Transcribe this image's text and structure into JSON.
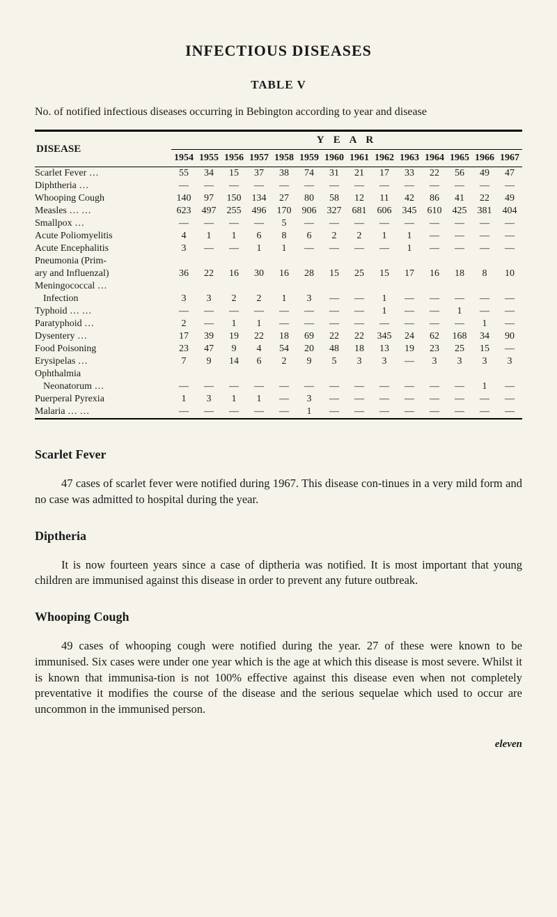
{
  "title": "INFECTIOUS DISEASES",
  "tableLabel": "TABLE V",
  "caption": "No. of notified infectious diseases occurring in Bebington according to year and disease",
  "yearBanner": "Y E A R",
  "diseaseHeaderLabel": "DISEASE",
  "years": [
    "1954",
    "1955",
    "1956",
    "1957",
    "1958",
    "1959",
    "1960",
    "1961",
    "1962",
    "1963",
    "1964",
    "1965",
    "1966",
    "1967"
  ],
  "rows": [
    {
      "label": "Scarlet Fever     …",
      "cells": [
        "55",
        "34",
        "15",
        "37",
        "38",
        "74",
        "31",
        "21",
        "17",
        "33",
        "22",
        "56",
        "49",
        "47"
      ]
    },
    {
      "label": "Diphtheria        …",
      "cells": [
        "—",
        "—",
        "—",
        "—",
        "—",
        "—",
        "—",
        "—",
        "—",
        "—",
        "—",
        "—",
        "—",
        "—"
      ]
    },
    {
      "label": "Whooping Cough",
      "cells": [
        "140",
        "97",
        "150",
        "134",
        "27",
        "80",
        "58",
        "12",
        "11",
        "42",
        "86",
        "41",
        "22",
        "49"
      ]
    },
    {
      "label": "Measles    …    …",
      "cells": [
        "623",
        "497",
        "255",
        "496",
        "170",
        "906",
        "327",
        "681",
        "606",
        "345",
        "610",
        "425",
        "381",
        "404"
      ]
    },
    {
      "label": "Smallpox         …",
      "cells": [
        "—",
        "—",
        "—",
        "—",
        "5",
        "—",
        "—",
        "—",
        "—",
        "—",
        "—",
        "—",
        "—",
        "—"
      ]
    },
    {
      "label": "Acute Poliomyelitis",
      "cells": [
        "4",
        "1",
        "1",
        "6",
        "8",
        "6",
        "2",
        "2",
        "1",
        "1",
        "—",
        "—",
        "—",
        "—"
      ]
    },
    {
      "label": "Acute Encephalitis",
      "cells": [
        "3",
        "—",
        "—",
        "1",
        "1",
        "—",
        "—",
        "—",
        "—",
        "1",
        "—",
        "—",
        "—",
        "—"
      ]
    },
    {
      "label": "Pneumonia  (Prim-",
      "cells": [
        "",
        "",
        "",
        "",
        "",
        "",
        "",
        "",
        "",
        "",
        "",
        "",
        "",
        ""
      ]
    },
    {
      "label": " ary and Influenzal)",
      "cells": [
        "36",
        "22",
        "16",
        "30",
        "16",
        "28",
        "15",
        "25",
        "15",
        "17",
        "16",
        "18",
        "8",
        "10"
      ]
    },
    {
      "label": "Meningococcal  …",
      "cells": [
        "",
        "",
        "",
        "",
        "",
        "",
        "",
        "",
        "",
        "",
        "",
        "",
        "",
        ""
      ]
    },
    {
      "label": "  Infection",
      "indent": true,
      "cells": [
        "3",
        "3",
        "2",
        "2",
        "1",
        "3",
        "—",
        "—",
        "1",
        "—",
        "—",
        "—",
        "—",
        "—"
      ]
    },
    {
      "label": "Typhoid  …     …",
      "cells": [
        "—",
        "—",
        "—",
        "—",
        "—",
        "—",
        "—",
        "—",
        "1",
        "—",
        "—",
        "1",
        "—",
        "—"
      ]
    },
    {
      "label": "Paratyphoid    …",
      "cells": [
        "2",
        "—",
        "1",
        "1",
        "—",
        "—",
        "—",
        "—",
        "—",
        "—",
        "—",
        "—",
        "1",
        "—"
      ]
    },
    {
      "label": "Dysentery        …",
      "cells": [
        "17",
        "39",
        "19",
        "22",
        "18",
        "69",
        "22",
        "22",
        "345",
        "24",
        "62",
        "168",
        "34",
        "90"
      ]
    },
    {
      "label": "Food Poisoning",
      "cells": [
        "23",
        "47",
        "9",
        "4",
        "54",
        "20",
        "48",
        "18",
        "13",
        "19",
        "23",
        "25",
        "15",
        "—"
      ]
    },
    {
      "label": "Erysipelas        …",
      "cells": [
        "7",
        "9",
        "14",
        "6",
        "2",
        "9",
        "5",
        "3",
        "3",
        "—",
        "3",
        "3",
        "3",
        "3"
      ]
    },
    {
      "label": "Ophthalmia",
      "cells": [
        "",
        "",
        "",
        "",
        "",
        "",
        "",
        "",
        "",
        "",
        "",
        "",
        "",
        ""
      ]
    },
    {
      "label": "  Neonatorum  …",
      "indent": true,
      "cells": [
        "—",
        "—",
        "—",
        "—",
        "—",
        "—",
        "—",
        "—",
        "—",
        "—",
        "—",
        "—",
        "1",
        "—"
      ]
    },
    {
      "label": "Puerperal Pyrexia",
      "cells": [
        "1",
        "3",
        "1",
        "1",
        "—",
        "3",
        "—",
        "—",
        "—",
        "—",
        "—",
        "—",
        "—",
        "—"
      ]
    },
    {
      "label": "Malaria   …     …",
      "cells": [
        "—",
        "—",
        "—",
        "—",
        "—",
        "1",
        "—",
        "—",
        "—",
        "—",
        "—",
        "—",
        "—",
        "—"
      ]
    }
  ],
  "sections": [
    {
      "heading": "Scarlet Fever",
      "body": "47 cases of scarlet fever were notified during 1967. This disease con-tinues in a very mild form and no case was admitted to hospital during the year."
    },
    {
      "heading": "Diptheria",
      "body": "It is now fourteen years since a case of diptheria was notified. It is most important that young children are immunised against this disease in order to prevent any future outbreak."
    },
    {
      "heading": "Whooping Cough",
      "body": "49 cases of whooping cough were notified during the year. 27 of these were known to be immunised. Six cases were under one year which is the age at which this disease is most severe. Whilst it is known that immunisa-tion is not 100% effective against this disease even when not completely preventative it modifies the course of the disease and the serious sequelae which used to occur are uncommon in the immunised person."
    }
  ],
  "footer": "eleven"
}
